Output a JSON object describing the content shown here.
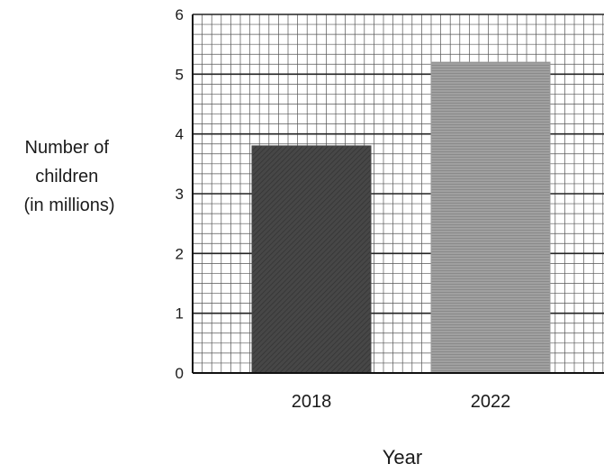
{
  "chart_data": {
    "type": "bar",
    "categories": [
      "2018",
      "2022"
    ],
    "values": [
      3.8,
      5.2
    ],
    "xlabel": "Year",
    "ylabel_lines": [
      "Number of",
      "children",
      "(in millions)"
    ],
    "ylim": [
      0,
      6
    ],
    "yticks": [
      "0",
      "1",
      "2",
      "3",
      "4",
      "5",
      "6"
    ],
    "grid": true,
    "bar_colors": [
      "#444444",
      "#9a9a9a"
    ]
  }
}
